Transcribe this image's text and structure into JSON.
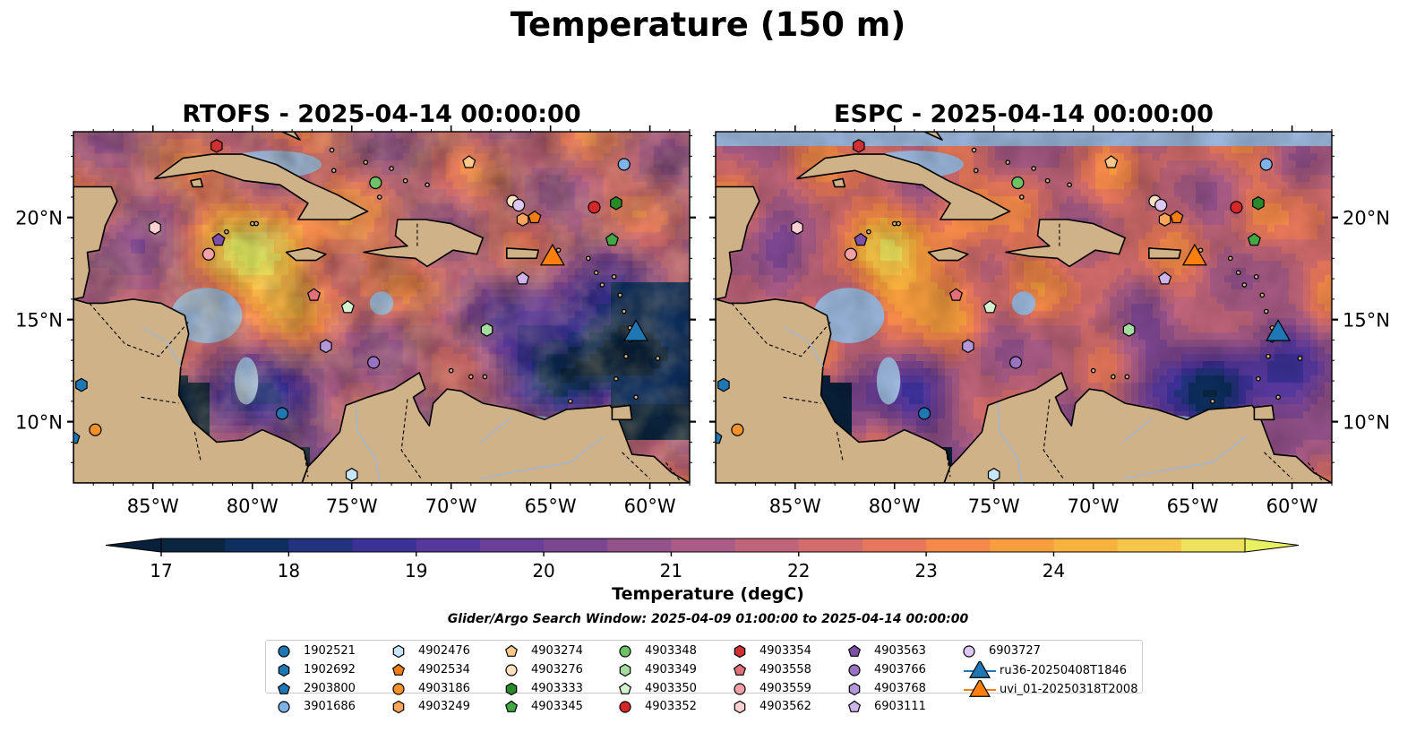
{
  "figure_title": "Temperature (150 m)",
  "panels": [
    {
      "title": "RTOFS - 2025-04-14 00:00:00"
    },
    {
      "title": "ESPC - 2025-04-14 00:00:00"
    }
  ],
  "colorbar": {
    "label": "Temperature (degC)",
    "ticks": [
      "17",
      "18",
      "19",
      "20",
      "21",
      "22",
      "23",
      "24"
    ],
    "colors": [
      "#0b2540",
      "#0d2e5e",
      "#243380",
      "#3b3196",
      "#56389c",
      "#6a3f97",
      "#7d4690",
      "#94528b",
      "#aa5c86",
      "#bf6479",
      "#d36c6c",
      "#e6775a",
      "#f4894a",
      "#f89e3e",
      "#f8b23e",
      "#f7c548",
      "#eee25c"
    ],
    "extend_low_color": "#08203a",
    "extend_high_color": "#e8f261"
  },
  "search_window": "Glider/Argo Search Window: 2025-04-09 01:00:00 to 2025-04-14 00:00:00",
  "colors": {
    "ocean_nodata": "#9cb8dd",
    "land": "#cfb287",
    "coastline": "#000000",
    "glider_ru36": "#1f77b4",
    "glider_uvi": "#ff7f0e"
  },
  "chart_data": [
    {
      "type": "heatmap",
      "title": "RTOFS - 2025-04-14 00:00:00",
      "xlim": [
        -89,
        -58
      ],
      "ylim": [
        7,
        24.2
      ],
      "xticks": [
        "85°W",
        "80°W",
        "75°W",
        "70°W",
        "65°W",
        "60°W"
      ],
      "yticks": [
        "10°N",
        "15°N",
        "20°N"
      ],
      "yticks_side": "left",
      "value_label": "Temperature (degC)",
      "vmin": 17,
      "vmax": 24.5,
      "warm_core": {
        "lon": -79.5,
        "lat": 17.8,
        "temp": 24.8
      },
      "cold_region": {
        "lon": -62.5,
        "lat": 13.5,
        "temp": 16.8
      }
    },
    {
      "type": "heatmap",
      "title": "ESPC - 2025-04-14 00:00:00",
      "xlim": [
        -89,
        -58
      ],
      "ylim": [
        7,
        24.2
      ],
      "xticks": [
        "85°W",
        "80°W",
        "75°W",
        "70°W",
        "65°W",
        "60°W"
      ],
      "yticks": [
        "10°N",
        "15°N",
        "20°N"
      ],
      "yticks_side": "right",
      "value_label": "Temperature (degC)",
      "vmin": 17,
      "vmax": 24.5,
      "warm_core": {
        "lon": -79.5,
        "lat": 17.5,
        "temp": 23.8
      },
      "cold_region": {
        "lon": -63,
        "lat": 11.5,
        "temp": 18.2
      }
    }
  ],
  "platforms": [
    {
      "id": "1902521",
      "marker": "circle",
      "color": "#1f77b4",
      "lon": -78.5,
      "lat": 10.4
    },
    {
      "id": "1902692",
      "marker": "hexagon",
      "color": "#1f77b4",
      "lon": -88.6,
      "lat": 11.8
    },
    {
      "id": "2903800",
      "marker": "pentagon",
      "color": "#1f77b4",
      "lon": -89.0,
      "lat": 9.2
    },
    {
      "id": "3901686",
      "marker": "circle",
      "color": "#7fb2e5",
      "lon": -61.3,
      "lat": 22.6
    },
    {
      "id": "4902476",
      "marker": "hexagon",
      "color": "#c7e6f9",
      "lon": -75.0,
      "lat": 7.4
    },
    {
      "id": "4902534",
      "marker": "pentagon",
      "color": "#f07d15",
      "lon": -65.8,
      "lat": 20.0
    },
    {
      "id": "4903186",
      "marker": "circle",
      "color": "#f7922a",
      "lon": -87.9,
      "lat": 9.6
    },
    {
      "id": "4903249",
      "marker": "hexagon",
      "color": "#f9a55b",
      "lon": -66.4,
      "lat": 19.9
    },
    {
      "id": "4903274",
      "marker": "pentagon",
      "color": "#fcc98b",
      "lon": -69.1,
      "lat": 22.7
    },
    {
      "id": "4903276",
      "marker": "circle",
      "color": "#fde0c0",
      "lon": -66.9,
      "lat": 20.8
    },
    {
      "id": "4903333",
      "marker": "hexagon",
      "color": "#2a8a2a",
      "lon": -61.7,
      "lat": 20.7
    },
    {
      "id": "4903345",
      "marker": "pentagon",
      "color": "#41a843",
      "lon": -61.9,
      "lat": 18.9
    },
    {
      "id": "4903348",
      "marker": "circle",
      "color": "#6cc265",
      "lon": -73.8,
      "lat": 21.7
    },
    {
      "id": "4903349",
      "marker": "hexagon",
      "color": "#a6dca0",
      "lon": -68.2,
      "lat": 14.5
    },
    {
      "id": "4903350",
      "marker": "pentagon",
      "color": "#d4f2cf",
      "lon": -75.2,
      "lat": 15.6
    },
    {
      "id": "4903352",
      "marker": "circle",
      "color": "#d62728",
      "lon": -62.8,
      "lat": 20.5
    },
    {
      "id": "4903354",
      "marker": "hexagon",
      "color": "#cf3033",
      "lon": -81.8,
      "lat": 23.5
    },
    {
      "id": "4903558",
      "marker": "pentagon",
      "color": "#e2707a",
      "lon": -76.9,
      "lat": 16.2
    },
    {
      "id": "4903559",
      "marker": "circle",
      "color": "#f2a1a6",
      "lon": -82.2,
      "lat": 18.2
    },
    {
      "id": "4903562",
      "marker": "hexagon",
      "color": "#fbd0d3",
      "lon": -84.9,
      "lat": 19.5
    },
    {
      "id": "4903563",
      "marker": "pentagon",
      "color": "#7d50a8",
      "lon": -81.7,
      "lat": 18.9
    },
    {
      "id": "4903766",
      "marker": "circle",
      "color": "#9a72c4",
      "lon": -73.9,
      "lat": 12.9
    },
    {
      "id": "4903768",
      "marker": "hexagon",
      "color": "#b497d8",
      "lon": -76.3,
      "lat": 13.7
    },
    {
      "id": "6903111",
      "marker": "pentagon",
      "color": "#cdb4ea",
      "lon": -66.4,
      "lat": 17.0
    },
    {
      "id": "6903727",
      "marker": "circle",
      "color": "#ddc8f4",
      "lon": -66.6,
      "lat": 20.6
    },
    {
      "id": "ru36-20250408T1846",
      "marker": "triangle",
      "color": "#1f77b4",
      "lon": -60.7,
      "lat": 14.4,
      "line": true
    },
    {
      "id": "uvi_01-20250318T2008",
      "marker": "triangle",
      "color": "#ff7f0e",
      "lon": -64.9,
      "lat": 18.1,
      "line": true
    }
  ]
}
